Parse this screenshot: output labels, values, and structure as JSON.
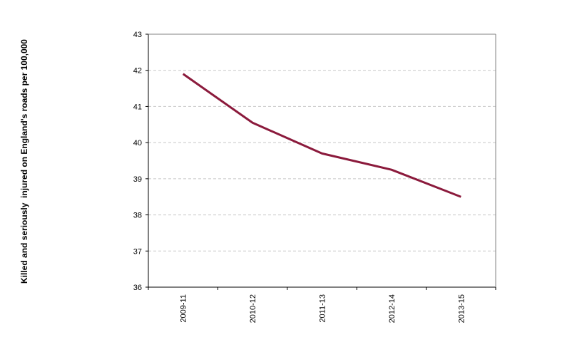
{
  "chart_data": {
    "type": "line",
    "title": "",
    "xlabel": "",
    "ylabel": "Killed and seriously  injured on England's roads per 100,000",
    "categories": [
      "2009-11",
      "2010-12",
      "2011-13",
      "2012-14",
      "2013-15"
    ],
    "series": [
      {
        "values": [
          41.9,
          40.55,
          39.7,
          39.25,
          38.5
        ]
      }
    ],
    "ylim": [
      36,
      43
    ],
    "yticks": [
      36,
      37,
      38,
      39,
      40,
      41,
      42,
      43
    ],
    "grid": "horizontal dashed",
    "colors": {
      "line": "#8b1a3c",
      "grid": "#c8c8c8",
      "axis": "#000000"
    }
  }
}
